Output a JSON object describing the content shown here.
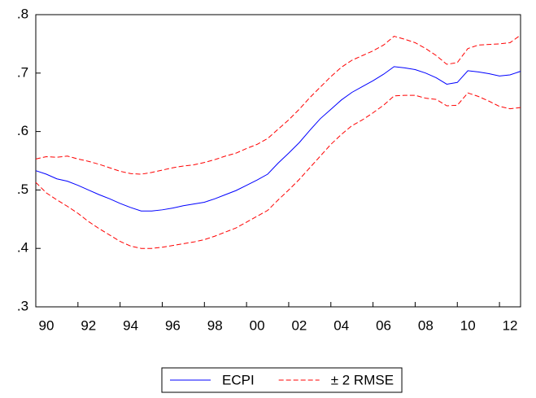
{
  "chart_data": {
    "type": "line",
    "x": [
      1990,
      1990.5,
      1991,
      1991.5,
      1992,
      1992.5,
      1993,
      1993.5,
      1994,
      1994.5,
      1995,
      1995.5,
      1996,
      1996.5,
      1997,
      1997.5,
      1998,
      1998.5,
      1999,
      1999.5,
      2000,
      2000.5,
      2001,
      2001.5,
      2002,
      2002.5,
      2003,
      2003.5,
      2004,
      2004.5,
      2005,
      2005.5,
      2006,
      2006.5,
      2007,
      2007.5,
      2008,
      2008.5,
      2009,
      2009.5,
      2010,
      2010.5,
      2011,
      2011.5,
      2012,
      2012.5,
      2013
    ],
    "series": [
      {
        "name": "ECPI",
        "color": "#0000ff",
        "line_style": "solid",
        "values": [
          0.533,
          0.527,
          0.519,
          0.515,
          0.508,
          0.5,
          0.492,
          0.485,
          0.477,
          0.47,
          0.464,
          0.464,
          0.466,
          0.469,
          0.473,
          0.476,
          0.479,
          0.485,
          0.492,
          0.499,
          0.508,
          0.517,
          0.527,
          0.546,
          0.563,
          0.581,
          0.602,
          0.622,
          0.638,
          0.654,
          0.667,
          0.677,
          0.687,
          0.698,
          0.711,
          0.709,
          0.706,
          0.7,
          0.692,
          0.681,
          0.684,
          0.704,
          0.702,
          0.699,
          0.695,
          0.697,
          0.703
        ]
      },
      {
        "name": "± 2 RMSE",
        "color": "#ff0000",
        "line_style": "dashed",
        "values": [
          0.553,
          0.557,
          0.556,
          0.558,
          0.553,
          0.549,
          0.544,
          0.538,
          0.532,
          0.528,
          0.527,
          0.53,
          0.534,
          0.538,
          0.541,
          0.543,
          0.547,
          0.552,
          0.558,
          0.563,
          0.571,
          0.578,
          0.588,
          0.604,
          0.62,
          0.638,
          0.658,
          0.676,
          0.694,
          0.71,
          0.722,
          0.73,
          0.738,
          0.748,
          0.763,
          0.758,
          0.752,
          0.742,
          0.73,
          0.715,
          0.718,
          0.742,
          0.748,
          0.749,
          0.75,
          0.752,
          0.765
        ]
      },
      {
        "color": "#ff0000",
        "line_style": "dashed",
        "values": [
          0.513,
          0.495,
          0.483,
          0.472,
          0.46,
          0.446,
          0.434,
          0.423,
          0.412,
          0.404,
          0.4,
          0.4,
          0.402,
          0.405,
          0.408,
          0.411,
          0.415,
          0.421,
          0.428,
          0.435,
          0.445,
          0.455,
          0.465,
          0.483,
          0.5,
          0.518,
          0.538,
          0.558,
          0.578,
          0.595,
          0.61,
          0.62,
          0.632,
          0.645,
          0.661,
          0.662,
          0.662,
          0.657,
          0.655,
          0.644,
          0.645,
          0.666,
          0.66,
          0.652,
          0.643,
          0.639,
          0.641
        ]
      }
    ],
    "xlim": [
      1990,
      2013
    ],
    "xticks": [
      {
        "value": 1990,
        "label": "90"
      },
      {
        "value": 1992,
        "label": "92"
      },
      {
        "value": 1994,
        "label": "94"
      },
      {
        "value": 1996,
        "label": "96"
      },
      {
        "value": 1998,
        "label": "98"
      },
      {
        "value": 2000,
        "label": "00"
      },
      {
        "value": 2002,
        "label": "02"
      },
      {
        "value": 2004,
        "label": "04"
      },
      {
        "value": 2006,
        "label": "06"
      },
      {
        "value": 2008,
        "label": "08"
      },
      {
        "value": 2010,
        "label": "10"
      },
      {
        "value": 2012,
        "label": "12"
      }
    ],
    "ylim": [
      0.3,
      0.8
    ],
    "yticks": [
      {
        "value": 0.3,
        "label": ".3"
      },
      {
        "value": 0.4,
        "label": ".4"
      },
      {
        "value": 0.5,
        "label": ".5"
      },
      {
        "value": 0.6,
        "label": ".6"
      },
      {
        "value": 0.7,
        "label": ".7"
      },
      {
        "value": 0.8,
        "label": ".8"
      }
    ],
    "grid": false,
    "legend": "bottom"
  }
}
